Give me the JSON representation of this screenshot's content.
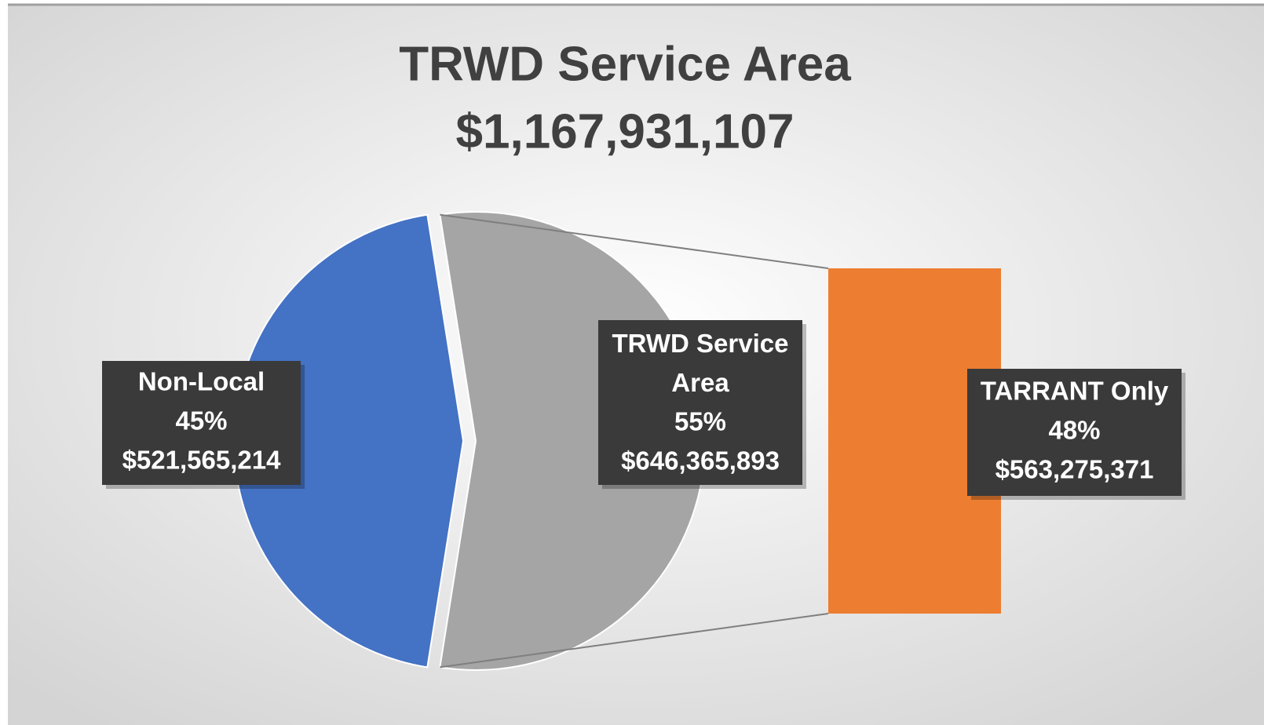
{
  "chart_data": {
    "type": "bar-of-pie",
    "title": "TRWD Service Area",
    "subtitle": "$1,167,931,107",
    "categories": [
      "Non-Local",
      "TRWD Service Area"
    ],
    "values": [
      45,
      55
    ],
    "value_labels": [
      "45%",
      "55%"
    ],
    "amounts": [
      521565214,
      646365893
    ],
    "amount_labels": [
      "$521,565,214",
      "$646,365,893"
    ],
    "colors": [
      "#4472c4",
      "#a5a5a5"
    ],
    "bar": {
      "categories": [
        "TARRANT Only"
      ],
      "values": [
        48
      ],
      "value_labels": [
        "48%"
      ],
      "amounts": [
        563275371
      ],
      "amount_labels": [
        "$563,275,371"
      ],
      "colors": [
        "#ed7d31"
      ]
    }
  }
}
